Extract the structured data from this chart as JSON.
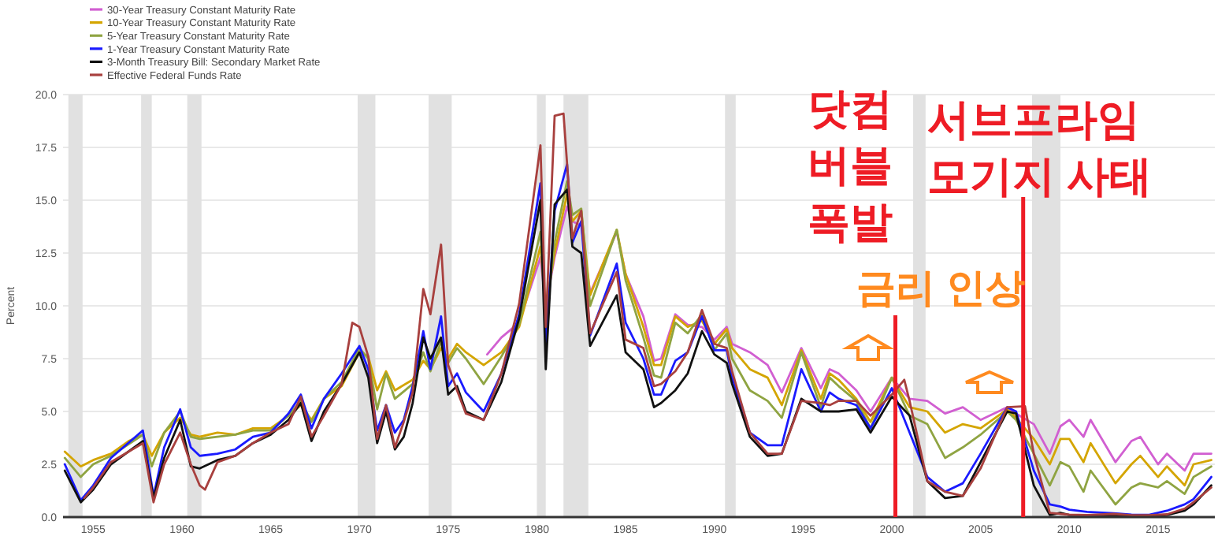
{
  "chart_data": {
    "type": "line",
    "ylabel": "Percent",
    "xlim": [
      1953.3,
      2018.2
    ],
    "xticks": [
      1955,
      1960,
      1965,
      1970,
      1975,
      1980,
      1985,
      1990,
      1995,
      2000,
      2005,
      2010,
      2015
    ],
    "ylim": [
      0,
      20
    ],
    "yticks": [
      {
        "value": 0,
        "label": "0.0"
      },
      {
        "value": 2.5,
        "label": "2.5"
      },
      {
        "value": 5,
        "label": "5.0"
      },
      {
        "value": 7.5,
        "label": "7.5"
      },
      {
        "value": 10,
        "label": "10.0"
      },
      {
        "value": 12.5,
        "label": "12.5"
      },
      {
        "value": 15,
        "label": "15.0"
      },
      {
        "value": 17.5,
        "label": "17.5"
      },
      {
        "value": 20,
        "label": "20.0"
      }
    ],
    "grid": "y",
    "legend": "top left",
    "bands": [
      {
        "axis": "x",
        "from": 1953.6,
        "to": 1954.4,
        "color": "#e1e1e1"
      },
      {
        "axis": "x",
        "from": 1957.7,
        "to": 1958.3,
        "color": "#e1e1e1"
      },
      {
        "axis": "x",
        "from": 1960.3,
        "to": 1961.1,
        "color": "#e1e1e1"
      },
      {
        "axis": "x",
        "from": 1969.9,
        "to": 1970.9,
        "color": "#e1e1e1"
      },
      {
        "axis": "x",
        "from": 1973.9,
        "to": 1975.2,
        "color": "#e1e1e1"
      },
      {
        "axis": "x",
        "from": 1980.0,
        "to": 1980.5,
        "color": "#e1e1e1"
      },
      {
        "axis": "x",
        "from": 1981.5,
        "to": 1982.9,
        "color": "#e1e1e1"
      },
      {
        "axis": "x",
        "from": 1990.6,
        "to": 1991.2,
        "color": "#e1e1e1"
      },
      {
        "axis": "x",
        "from": 2001.2,
        "to": 2001.9,
        "color": "#e1e1e1"
      },
      {
        "axis": "x",
        "from": 2007.9,
        "to": 2009.5,
        "color": "#e1e1e1"
      }
    ],
    "ref_lines": [
      {
        "axis": "x",
        "value": 2000.2,
        "label": "닷컴 버블 폭발",
        "color": "#ee1c25"
      },
      {
        "axis": "x",
        "value": 2007.4,
        "label": "서브프라임 모기지 사태",
        "color": "#ee1c25"
      }
    ],
    "annotations": [
      "금리 인상"
    ],
    "series": [
      {
        "name": "30-Year Treasury Constant Maturity Rate",
        "color": "#d15fd1",
        "x": [
          1977.2,
          1978,
          1979,
          1980.2,
          1980.5,
          1981,
          1981.7,
          1982,
          1982.5,
          1983,
          1984.5,
          1985,
          1986,
          1986.6,
          1987,
          1987.8,
          1988.5,
          1989.3,
          1990,
          1990.7,
          1991,
          1992,
          1993,
          1993.8,
          1994.9,
          1996,
          1996.5,
          1997,
          1998,
          1998.8,
          2000,
          2001,
          2002,
          2003,
          2004,
          2005,
          2006.5,
          2007,
          2008,
          2008.9,
          2009.5,
          2010,
          2010.8,
          2011.2,
          2012.6,
          2013.5,
          2014,
          2015,
          2015.5,
          2016.5,
          2017,
          2018
        ],
        "values": [
          7.7,
          8.5,
          9.2,
          12.3,
          10.0,
          12.3,
          14.7,
          14.0,
          13.8,
          10.6,
          13.5,
          11.5,
          9.5,
          7.4,
          7.5,
          9.6,
          9.1,
          9.0,
          8.4,
          9.0,
          8.2,
          7.8,
          7.2,
          5.9,
          8.0,
          6.1,
          7.0,
          6.8,
          6.0,
          5.0,
          6.6,
          5.6,
          5.5,
          4.9,
          5.2,
          4.6,
          5.2,
          4.9,
          4.4,
          3.0,
          4.3,
          4.6,
          3.8,
          4.6,
          2.6,
          3.6,
          3.8,
          2.5,
          3.0,
          2.2,
          3.0,
          3.0
        ]
      },
      {
        "name": "10-Year Treasury Constant Maturity Rate",
        "color": "#d4a500",
        "x": [
          1953.4,
          1954.3,
          1955,
          1956,
          1957,
          1957.8,
          1958.3,
          1959,
          1959.9,
          1960.5,
          1961,
          1962,
          1963,
          1964,
          1965,
          1966,
          1966.7,
          1967.3,
          1968,
          1969,
          1970,
          1970.5,
          1971,
          1971.5,
          1972,
          1973,
          1973.6,
          1974,
          1974.6,
          1975,
          1975.5,
          1976,
          1977,
          1978,
          1979,
          1980.2,
          1980.5,
          1981,
          1981.7,
          1982,
          1982.5,
          1983,
          1984.5,
          1985,
          1986,
          1986.6,
          1987,
          1987.8,
          1988.5,
          1989.3,
          1990,
          1990.7,
          1991,
          1992,
          1993,
          1993.8,
          1994.9,
          1996,
          1996.5,
          1997,
          1998,
          1998.8,
          2000,
          2001,
          2002,
          2003,
          2004,
          2005,
          2006.5,
          2007,
          2008,
          2008.9,
          2009.5,
          2010,
          2010.8,
          2011.2,
          2012.6,
          2013.5,
          2014,
          2015,
          2015.5,
          2016.5,
          2017,
          2018
        ],
        "values": [
          3.1,
          2.4,
          2.7,
          3.0,
          3.6,
          3.9,
          2.9,
          4.0,
          4.7,
          3.9,
          3.8,
          4.0,
          3.9,
          4.2,
          4.2,
          4.8,
          5.3,
          4.6,
          5.6,
          6.2,
          7.8,
          7.6,
          6.0,
          6.9,
          6.0,
          6.5,
          7.4,
          7.0,
          8.0,
          7.5,
          8.2,
          7.8,
          7.2,
          7.8,
          9.0,
          12.8,
          10.0,
          12.5,
          15.3,
          14.0,
          14.5,
          10.5,
          13.6,
          11.5,
          9.0,
          7.2,
          7.2,
          9.5,
          9.0,
          9.3,
          8.2,
          8.9,
          8.0,
          7.0,
          6.6,
          5.3,
          7.9,
          5.6,
          6.8,
          6.5,
          5.6,
          4.5,
          6.6,
          5.2,
          5.0,
          4.0,
          4.4,
          4.2,
          5.1,
          4.7,
          3.7,
          2.5,
          3.7,
          3.7,
          2.6,
          3.5,
          1.6,
          2.5,
          2.9,
          1.9,
          2.4,
          1.5,
          2.5,
          2.7
        ]
      },
      {
        "name": "5-Year Treasury Constant Maturity Rate",
        "color": "#8fa442",
        "x": [
          1953.4,
          1954.3,
          1955,
          1956,
          1957.8,
          1958.3,
          1959,
          1959.9,
          1960.5,
          1961,
          1962,
          1963,
          1964,
          1965,
          1966,
          1966.7,
          1967.3,
          1968,
          1969,
          1970,
          1970.5,
          1971,
          1971.5,
          1972,
          1973,
          1973.6,
          1974,
          1974.6,
          1975,
          1975.5,
          1976,
          1977,
          1978,
          1979,
          1980.2,
          1980.5,
          1981,
          1981.7,
          1982,
          1982.5,
          1983,
          1984.5,
          1985,
          1986,
          1986.6,
          1987,
          1987.8,
          1988.5,
          1989.3,
          1990,
          1990.7,
          1991,
          1992,
          1993,
          1993.8,
          1994.9,
          1996,
          1996.5,
          1997,
          1998,
          1998.8,
          2000,
          2001,
          2002,
          2003,
          2004,
          2005,
          2006.5,
          2007,
          2008,
          2008.9,
          2009.5,
          2010,
          2010.8,
          2011.2,
          2012.6,
          2013.5,
          2014,
          2015,
          2015.5,
          2016.5,
          2017,
          2018
        ],
        "values": [
          2.8,
          1.9,
          2.5,
          2.9,
          3.9,
          2.4,
          4.0,
          5.0,
          3.8,
          3.7,
          3.8,
          3.9,
          4.1,
          4.1,
          4.8,
          5.5,
          4.5,
          5.6,
          6.4,
          8.0,
          7.5,
          5.1,
          6.8,
          5.6,
          6.3,
          7.8,
          6.9,
          8.3,
          7.3,
          8.0,
          7.5,
          6.3,
          7.6,
          9.1,
          13.5,
          9.3,
          13.0,
          15.9,
          14.3,
          14.6,
          10.0,
          13.6,
          11.2,
          8.5,
          6.7,
          6.6,
          9.2,
          8.7,
          9.6,
          7.9,
          8.7,
          7.5,
          6.0,
          5.5,
          4.7,
          7.8,
          5.2,
          6.6,
          6.2,
          5.5,
          4.2,
          6.6,
          4.8,
          4.4,
          2.8,
          3.3,
          3.9,
          5.0,
          4.6,
          3.0,
          1.5,
          2.6,
          2.4,
          1.2,
          2.2,
          0.6,
          1.4,
          1.6,
          1.4,
          1.7,
          1.1,
          1.9,
          2.4
        ]
      },
      {
        "name": "1-Year Treasury Constant Maturity Rate",
        "color": "#1a1aff",
        "x": [
          1953.4,
          1954.3,
          1955,
          1956,
          1957.8,
          1958.4,
          1959,
          1959.9,
          1960.5,
          1961,
          1962,
          1963,
          1964,
          1965,
          1966,
          1966.7,
          1967.3,
          1968,
          1969,
          1970,
          1970.5,
          1971,
          1971.5,
          1972,
          1972.5,
          1973,
          1973.6,
          1974,
          1974.6,
          1975,
          1975.5,
          1976,
          1977,
          1978,
          1979,
          1980.2,
          1980.5,
          1981,
          1981.7,
          1982,
          1982.5,
          1983,
          1984.5,
          1985,
          1986,
          1986.6,
          1987,
          1987.8,
          1988.5,
          1989.3,
          1990,
          1990.7,
          1991,
          1992,
          1993,
          1993.8,
          1994.9,
          1996,
          1996.5,
          1997,
          1998,
          1998.8,
          2000,
          2001,
          2002,
          2003,
          2004,
          2005,
          2006.5,
          2007,
          2008,
          2008.9,
          2009.5,
          2010,
          2011,
          2012.5,
          2013.5,
          2014.5,
          2015.5,
          2016.5,
          2017,
          2018
        ],
        "values": [
          2.5,
          0.8,
          1.5,
          2.8,
          4.1,
          1.0,
          3.3,
          5.1,
          3.3,
          2.9,
          3.0,
          3.2,
          3.8,
          4.0,
          4.9,
          5.8,
          4.2,
          5.6,
          6.8,
          8.1,
          7.0,
          4.1,
          5.3,
          4.0,
          4.6,
          6.2,
          8.8,
          7.0,
          9.5,
          6.2,
          6.8,
          5.9,
          5.0,
          6.8,
          9.6,
          15.8,
          8.0,
          14.5,
          16.7,
          13.0,
          14.0,
          8.6,
          12.0,
          9.2,
          7.5,
          5.8,
          5.8,
          7.4,
          7.8,
          9.5,
          7.9,
          7.9,
          6.6,
          4.0,
          3.4,
          3.4,
          7.0,
          5.0,
          5.9,
          5.6,
          5.3,
          4.2,
          6.1,
          4.0,
          1.9,
          1.2,
          1.6,
          3.0,
          5.2,
          5.0,
          2.2,
          0.6,
          0.5,
          0.35,
          0.25,
          0.18,
          0.12,
          0.11,
          0.3,
          0.6,
          0.85,
          1.9
        ]
      },
      {
        "name": "3-Month Treasury Bill: Secondary Market Rate",
        "color": "#111111",
        "x": [
          1953.4,
          1954.3,
          1955,
          1956,
          1957.8,
          1958.4,
          1959,
          1959.9,
          1960.5,
          1961,
          1962,
          1963,
          1964,
          1965,
          1966,
          1966.7,
          1967.3,
          1968,
          1969,
          1970,
          1970.5,
          1971,
          1971.5,
          1972,
          1972.5,
          1973,
          1973.6,
          1974,
          1974.6,
          1975,
          1975.5,
          1976,
          1977,
          1978,
          1979,
          1980.2,
          1980.5,
          1981,
          1981.7,
          1982,
          1982.5,
          1983,
          1984.5,
          1985,
          1986,
          1986.6,
          1987,
          1987.8,
          1988.5,
          1989.3,
          1990,
          1990.7,
          1991,
          1992,
          1993,
          1993.8,
          1994.9,
          1996,
          1996.5,
          1997,
          1998,
          1998.8,
          2000,
          2001,
          2002,
          2003,
          2004,
          2005,
          2006.5,
          2007,
          2008,
          2008.9,
          2009.5,
          2010,
          2011,
          2012.5,
          2013.5,
          2014.5,
          2015.5,
          2016.5,
          2017,
          2018
        ],
        "values": [
          2.2,
          0.7,
          1.3,
          2.5,
          3.6,
          0.9,
          2.8,
          4.6,
          2.4,
          2.3,
          2.7,
          2.9,
          3.5,
          3.9,
          4.6,
          5.4,
          3.6,
          5.0,
          6.3,
          7.8,
          6.6,
          3.5,
          5.0,
          3.2,
          3.8,
          5.4,
          8.5,
          7.5,
          8.5,
          5.8,
          6.2,
          5.0,
          4.6,
          6.4,
          9.4,
          15.0,
          7.0,
          14.8,
          15.5,
          12.8,
          12.5,
          8.1,
          10.5,
          7.8,
          7.0,
          5.2,
          5.4,
          6.0,
          6.8,
          8.8,
          7.7,
          7.3,
          6.3,
          3.8,
          2.9,
          3.0,
          5.6,
          5.0,
          5.0,
          5.0,
          5.1,
          4.0,
          5.7,
          4.8,
          1.7,
          0.9,
          1.0,
          2.6,
          5.0,
          4.9,
          1.5,
          0.1,
          0.2,
          0.1,
          0.1,
          0.09,
          0.05,
          0.03,
          0.1,
          0.3,
          0.6,
          1.5
        ]
      },
      {
        "name": "Effective Federal Funds Rate",
        "color": "#a8403e",
        "x": [
          1954.5,
          1955,
          1956,
          1957.8,
          1958.4,
          1959,
          1959.9,
          1960.5,
          1961,
          1961.3,
          1962,
          1963,
          1964,
          1965,
          1966,
          1966.7,
          1967.3,
          1968,
          1969,
          1969.6,
          1970,
          1970.5,
          1971,
          1971.5,
          1972,
          1972.5,
          1973,
          1973.6,
          1974,
          1974.6,
          1975,
          1975.5,
          1976,
          1977,
          1978,
          1979,
          1980.2,
          1980.5,
          1981,
          1981.5,
          1982,
          1982.5,
          1983,
          1984.5,
          1985,
          1986,
          1986.6,
          1987,
          1987.8,
          1988.5,
          1989.3,
          1990,
          1990.7,
          1991,
          1992,
          1993,
          1993.8,
          1994.9,
          1996,
          1996.5,
          1997,
          1998,
          1998.8,
          2000,
          2000.7,
          2001,
          2002,
          2003,
          2004,
          2005,
          2006.5,
          2007.5,
          2008,
          2008.9,
          2009.5,
          2010,
          2011,
          2012.5,
          2013.5,
          2014.5,
          2015.5,
          2016.5,
          2017,
          2018
        ],
        "values": [
          0.9,
          1.4,
          2.6,
          3.5,
          0.7,
          2.5,
          4.0,
          2.5,
          1.5,
          1.3,
          2.6,
          2.9,
          3.5,
          4.0,
          4.4,
          5.7,
          3.8,
          4.8,
          6.3,
          9.2,
          9.0,
          7.6,
          3.7,
          5.3,
          3.3,
          4.5,
          5.9,
          10.8,
          9.6,
          12.9,
          7.2,
          6.0,
          4.9,
          4.6,
          6.8,
          10.1,
          17.6,
          9.0,
          19.0,
          19.1,
          13.2,
          14.5,
          8.7,
          11.6,
          8.4,
          8.0,
          6.2,
          6.3,
          6.9,
          7.8,
          9.8,
          8.2,
          8.0,
          6.9,
          4.0,
          3.0,
          3.0,
          5.5,
          5.4,
          5.3,
          5.5,
          5.5,
          4.8,
          5.8,
          6.5,
          5.5,
          1.7,
          1.2,
          1.0,
          2.3,
          5.2,
          5.25,
          3.0,
          0.2,
          0.15,
          0.12,
          0.1,
          0.15,
          0.09,
          0.09,
          0.13,
          0.4,
          0.7,
          1.4
        ]
      }
    ]
  }
}
